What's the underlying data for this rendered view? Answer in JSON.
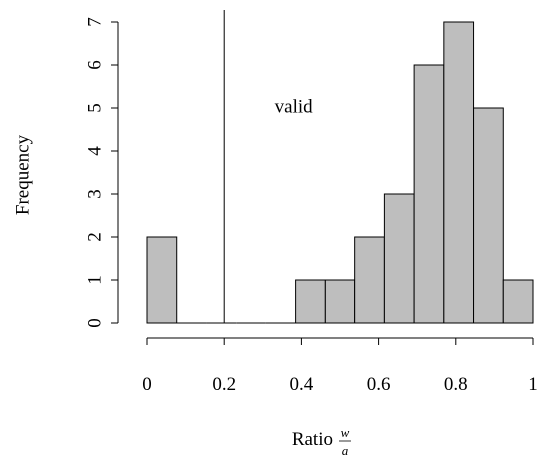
{
  "chart_data": {
    "type": "bar",
    "subtype": "histogram",
    "bins": [
      {
        "start": 0.0,
        "end": 0.077,
        "count": 2
      },
      {
        "start": 0.077,
        "end": 0.154,
        "count": 0
      },
      {
        "start": 0.154,
        "end": 0.231,
        "count": 0
      },
      {
        "start": 0.231,
        "end": 0.308,
        "count": 0
      },
      {
        "start": 0.308,
        "end": 0.385,
        "count": 0
      },
      {
        "start": 0.385,
        "end": 0.462,
        "count": 1
      },
      {
        "start": 0.462,
        "end": 0.538,
        "count": 1
      },
      {
        "start": 0.538,
        "end": 0.615,
        "count": 2
      },
      {
        "start": 0.615,
        "end": 0.692,
        "count": 3
      },
      {
        "start": 0.692,
        "end": 0.769,
        "count": 6
      },
      {
        "start": 0.769,
        "end": 0.846,
        "count": 7
      },
      {
        "start": 0.846,
        "end": 0.923,
        "count": 5
      },
      {
        "start": 0.923,
        "end": 1.0,
        "count": 1
      }
    ],
    "xlim": [
      0,
      1
    ],
    "ylim": [
      0,
      7
    ],
    "x_ticks": [
      "0",
      "0.2",
      "0.4",
      "0.6",
      "0.8",
      "1"
    ],
    "y_ticks": [
      "0",
      "1",
      "2",
      "3",
      "4",
      "5",
      "6",
      "7"
    ],
    "ylabel": "Frequency",
    "xlabel": {
      "prefix": "Ratio",
      "numerator": "w",
      "denominator": "a"
    },
    "vline": {
      "x": 0.2
    },
    "annotation": {
      "text": "valid",
      "x": 0.38,
      "y": 5
    },
    "bar_fill": "#bebebe",
    "bar_stroke": "#000000",
    "grid": false,
    "legend": "none"
  }
}
